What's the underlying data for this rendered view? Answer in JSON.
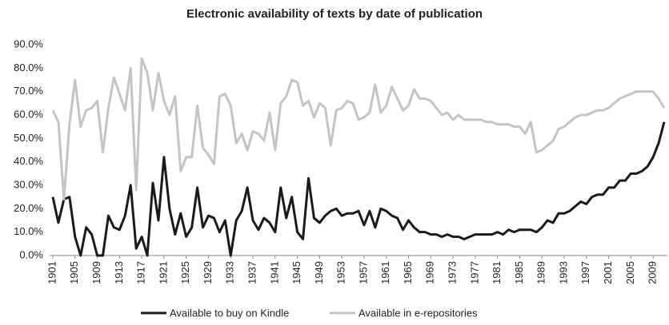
{
  "chart_data": {
    "type": "line",
    "title": "Electronic availability of texts by date of publication",
    "x": [
      1901,
      1902,
      1903,
      1904,
      1905,
      1906,
      1907,
      1908,
      1909,
      1910,
      1911,
      1912,
      1913,
      1914,
      1915,
      1916,
      1917,
      1918,
      1919,
      1920,
      1921,
      1922,
      1923,
      1924,
      1925,
      1926,
      1927,
      1928,
      1929,
      1930,
      1931,
      1932,
      1933,
      1934,
      1935,
      1936,
      1937,
      1938,
      1939,
      1940,
      1941,
      1942,
      1943,
      1944,
      1945,
      1946,
      1947,
      1948,
      1949,
      1950,
      1951,
      1952,
      1953,
      1954,
      1955,
      1956,
      1957,
      1958,
      1959,
      1960,
      1961,
      1962,
      1963,
      1964,
      1965,
      1966,
      1967,
      1968,
      1969,
      1970,
      1971,
      1972,
      1973,
      1974,
      1975,
      1976,
      1977,
      1978,
      1979,
      1980,
      1981,
      1982,
      1983,
      1984,
      1985,
      1986,
      1987,
      1988,
      1989,
      1990,
      1991,
      1992,
      1993,
      1994,
      1995,
      1996,
      1997,
      1998,
      1999,
      2000,
      2001,
      2002,
      2003,
      2004,
      2005,
      2006,
      2007,
      2008,
      2009,
      2010,
      2011
    ],
    "series": [
      {
        "name": "Available to buy on Kindle",
        "color": "#1a1a1a",
        "values": [
          25,
          14,
          24,
          25,
          8,
          0,
          12,
          9,
          0,
          0,
          17,
          12,
          11,
          17,
          30,
          3,
          8,
          0,
          31,
          15,
          42,
          20,
          9,
          18,
          8,
          12,
          29,
          12,
          17,
          16,
          10,
          15,
          0,
          15,
          19,
          29,
          15,
          11,
          16,
          14,
          10,
          29,
          16,
          25,
          10,
          7,
          33,
          16,
          14,
          17,
          19,
          20,
          17,
          18,
          18,
          19,
          13,
          19,
          12,
          20,
          19,
          17,
          16,
          11,
          15,
          12,
          10,
          10,
          9,
          9,
          8,
          9,
          8,
          8,
          7,
          8,
          9,
          9,
          9,
          9,
          10,
          9,
          11,
          10,
          11,
          11,
          11,
          10,
          12,
          15,
          14,
          18,
          18,
          19,
          21,
          23,
          22,
          25,
          26,
          26,
          29,
          29,
          32,
          32,
          35,
          35,
          36,
          38,
          42,
          48,
          57
        ]
      },
      {
        "name": "Available in e-repositories",
        "color": "#c4c4c4",
        "values": [
          62,
          57,
          24,
          56,
          75,
          55,
          62,
          63,
          66,
          44,
          63,
          76,
          69,
          62,
          80,
          28,
          84,
          78,
          62,
          78,
          66,
          60,
          68,
          36,
          42,
          42,
          64,
          46,
          43,
          39,
          68,
          69,
          64,
          48,
          52,
          45,
          53,
          52,
          49,
          61,
          45,
          65,
          68,
          75,
          74,
          64,
          66,
          59,
          65,
          63,
          47,
          62,
          63,
          66,
          65,
          58,
          59,
          61,
          73,
          61,
          64,
          72,
          67,
          62,
          64,
          71,
          67,
          67,
          66,
          63,
          60,
          61,
          58,
          60,
          58,
          58,
          58,
          58,
          57,
          57,
          56,
          56,
          56,
          55,
          55,
          52,
          57,
          44,
          45,
          47,
          49,
          54,
          55,
          57,
          59,
          60,
          60,
          61,
          62,
          62,
          63,
          65,
          67,
          68,
          69,
          70,
          70,
          70,
          70,
          67,
          63
        ]
      }
    ],
    "xlim": [
      1901,
      2011
    ],
    "xticks": [
      1901,
      1905,
      1909,
      1913,
      1917,
      1921,
      1925,
      1929,
      1933,
      1937,
      1941,
      1945,
      1949,
      1953,
      1957,
      1961,
      1965,
      1969,
      1973,
      1977,
      1981,
      1985,
      1989,
      1993,
      1997,
      2001,
      2005,
      2009
    ],
    "ylim": [
      0,
      90
    ],
    "yticks": [
      {
        "value": 0,
        "label": "0.0%"
      },
      {
        "value": 10,
        "label": "10.0%"
      },
      {
        "value": 20,
        "label": "20.0%"
      },
      {
        "value": 30,
        "label": "30.0%"
      },
      {
        "value": 40,
        "label": "40.0%"
      },
      {
        "value": 50,
        "label": "50.0%"
      },
      {
        "value": 60,
        "label": "60.0%"
      },
      {
        "value": 70,
        "label": "70.0%"
      },
      {
        "value": 80,
        "label": "80.0%"
      },
      {
        "value": 90,
        "label": "90.0%"
      }
    ],
    "legend": "bottom"
  }
}
